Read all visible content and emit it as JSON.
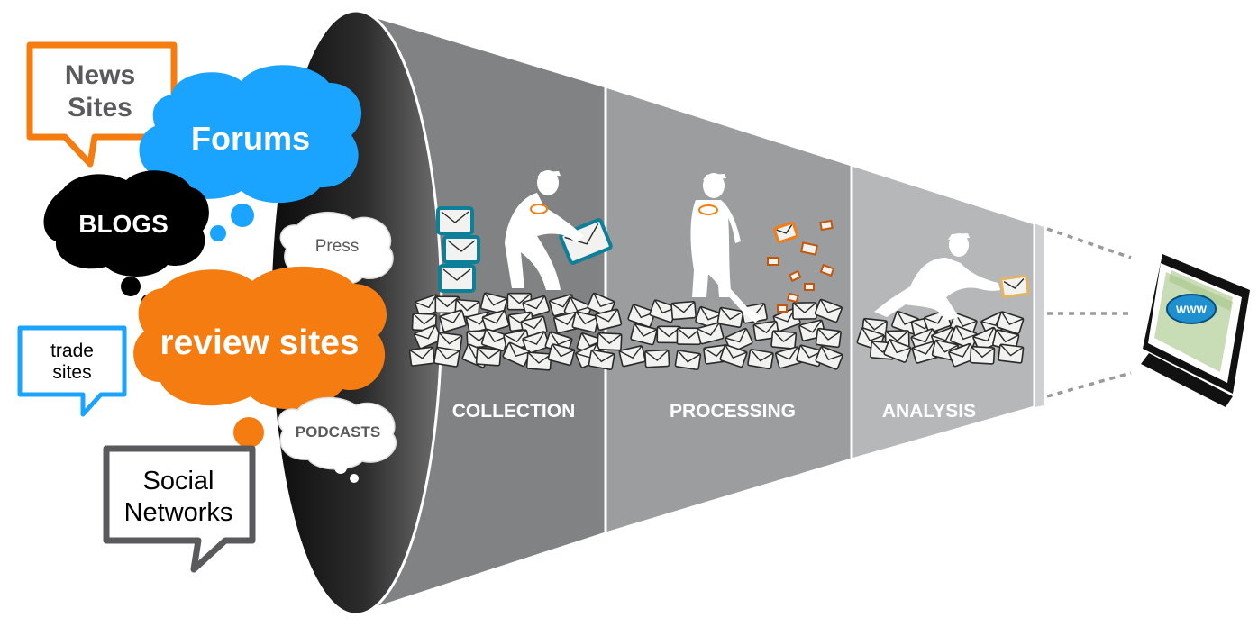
{
  "sources": {
    "news_sites": [
      "News",
      "Sites"
    ],
    "forums": "Forums",
    "blogs": "BLOGS",
    "press": "Press",
    "review_sites": "review sites",
    "trade_sites": [
      "trade",
      "sites"
    ],
    "podcasts": "PODCASTS",
    "social_networks": [
      "Social",
      "Networks"
    ]
  },
  "stages": [
    {
      "label": "COLLECTION"
    },
    {
      "label": "PROCESSING"
    },
    {
      "label": "ANALYSIS"
    }
  ],
  "output": {
    "screen_text": "WWW"
  },
  "colors": {
    "orange": "#f47c10",
    "blue": "#1aa3ff",
    "black": "#000000",
    "dark_gray": "#5a5a5c",
    "funnel_1": "#818284",
    "funnel_2": "#9c9d9f",
    "funnel_3": "#b6b7b9",
    "funnel_4": "#cfd0d2"
  }
}
